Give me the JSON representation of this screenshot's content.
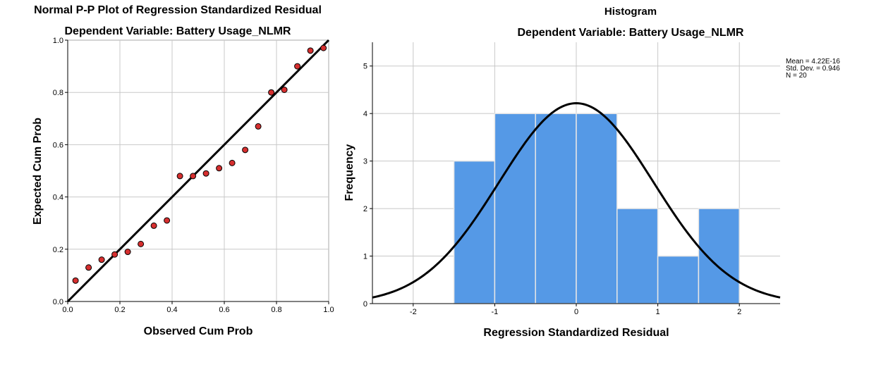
{
  "chart_data": [
    {
      "type": "scatter",
      "title": "Normal P-P Plot of Regression Standardized Residual",
      "subtitle": "Dependent Variable: Battery Usage_NLMR",
      "xlabel": "Observed Cum Prob",
      "ylabel": "Expected Cum Prob",
      "xlim": [
        0,
        1
      ],
      "ylim": [
        0,
        1
      ],
      "xticks": [
        "0.0",
        "0.2",
        "0.4",
        "0.6",
        "0.8",
        "1.0"
      ],
      "yticks": [
        "0.0",
        "0.2",
        "0.4",
        "0.6",
        "0.8",
        "1.0"
      ],
      "grid": true,
      "reference_line": [
        [
          0,
          0
        ],
        [
          1,
          1
        ]
      ],
      "point_color": "#d62f2f",
      "line_color": "#000000",
      "points": [
        {
          "x": 0.03,
          "y": 0.08
        },
        {
          "x": 0.08,
          "y": 0.13
        },
        {
          "x": 0.13,
          "y": 0.16
        },
        {
          "x": 0.18,
          "y": 0.18
        },
        {
          "x": 0.23,
          "y": 0.19
        },
        {
          "x": 0.28,
          "y": 0.22
        },
        {
          "x": 0.33,
          "y": 0.29
        },
        {
          "x": 0.38,
          "y": 0.31
        },
        {
          "x": 0.43,
          "y": 0.48
        },
        {
          "x": 0.48,
          "y": 0.48
        },
        {
          "x": 0.53,
          "y": 0.49
        },
        {
          "x": 0.58,
          "y": 0.51
        },
        {
          "x": 0.63,
          "y": 0.53
        },
        {
          "x": 0.68,
          "y": 0.58
        },
        {
          "x": 0.73,
          "y": 0.67
        },
        {
          "x": 0.78,
          "y": 0.8
        },
        {
          "x": 0.83,
          "y": 0.81
        },
        {
          "x": 0.88,
          "y": 0.9
        },
        {
          "x": 0.93,
          "y": 0.96
        },
        {
          "x": 0.98,
          "y": 0.97
        }
      ]
    },
    {
      "type": "bar",
      "title": "Histogram",
      "subtitle": "Dependent Variable: Battery Usage_NLMR",
      "xlabel": "Regression Standardized Residual",
      "ylabel": "Frequency",
      "xlim": [
        -2.5,
        2.5
      ],
      "ylim": [
        0,
        5.5
      ],
      "xticks": [
        "-2",
        "-1",
        "0",
        "1",
        "2"
      ],
      "yticks": [
        "0",
        "1",
        "2",
        "3",
        "4",
        "5"
      ],
      "grid": true,
      "bar_color": "#5599e6",
      "curve_color": "#000000",
      "bins": [
        {
          "from": -1.5,
          "to": -1.0,
          "count": 3
        },
        {
          "from": -1.0,
          "to": -0.5,
          "count": 4
        },
        {
          "from": -0.5,
          "to": 0.0,
          "count": 4
        },
        {
          "from": 0.0,
          "to": 0.5,
          "count": 4
        },
        {
          "from": 0.5,
          "to": 1.0,
          "count": 2
        },
        {
          "from": 1.0,
          "to": 1.5,
          "count": 1
        },
        {
          "from": 1.5,
          "to": 2.0,
          "count": 2
        }
      ],
      "normal_curve": {
        "mean": 0,
        "std": 0.946,
        "n": 20,
        "bin_width": 0.5
      },
      "stats": {
        "mean": "Mean = 4.22E-16",
        "std": "Std. Dev. = 0.946",
        "n": "N = 20"
      }
    }
  ]
}
